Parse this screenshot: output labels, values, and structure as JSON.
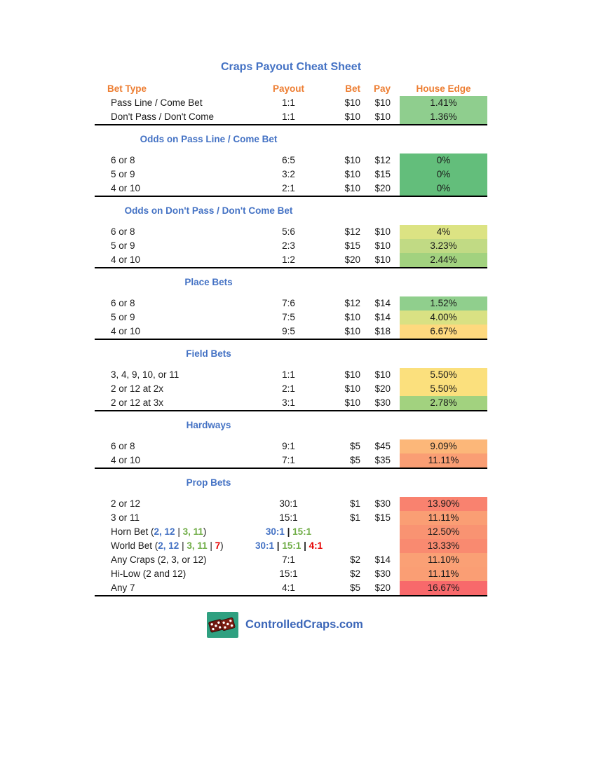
{
  "title": "Craps Payout Cheat Sheet",
  "columns": {
    "bet_type": "Bet Type",
    "payout": "Payout",
    "bet": "Bet",
    "pay": "Pay",
    "house_edge": "House Edge"
  },
  "palette": {
    "title_blue": "#4472C4",
    "header_orange": "#ED7D31",
    "section_blue": "#4472C4",
    "num_blue": "#4472C4",
    "num_green": "#70AD47",
    "num_red": "#E60000",
    "edge_green": "#63BE7B",
    "edge_yellow": "#FBE07D",
    "edge_red": "#F8696B",
    "logo_green": "#2FA080",
    "dice_maroon": "#6E1710",
    "site_blue": "#3B66B8"
  },
  "sections": [
    {
      "title": null,
      "rows": [
        {
          "bet_type": "Pass Line / Come Bet",
          "payout": "1:1",
          "bet": "$10",
          "pay": "$10",
          "edge": "1.41%",
          "edge_color": "#8FCE8E"
        },
        {
          "bet_type": "Don't Pass / Don't Come",
          "payout": "1:1",
          "bet": "$10",
          "pay": "$10",
          "edge": "1.36%",
          "edge_color": "#8FCE8E"
        }
      ]
    },
    {
      "title": "Odds on Pass Line / Come Bet",
      "rows": [
        {
          "bet_type": "6 or 8",
          "payout": "6:5",
          "bet": "$10",
          "pay": "$12",
          "edge": "0%",
          "edge_color": "#63BE7B"
        },
        {
          "bet_type": "5 or 9",
          "payout": "3:2",
          "bet": "$10",
          "pay": "$15",
          "edge": "0%",
          "edge_color": "#63BE7B"
        },
        {
          "bet_type": "4 or 10",
          "payout": "2:1",
          "bet": "$10",
          "pay": "$20",
          "edge": "0%",
          "edge_color": "#63BE7B"
        }
      ]
    },
    {
      "title": "Odds on Don't Pass / Don't Come Bet",
      "rows": [
        {
          "bet_type": "6 or 8",
          "payout": "5:6",
          "bet": "$12",
          "pay": "$10",
          "edge": "4%",
          "edge_color": "#DCE383"
        },
        {
          "bet_type": "5 or 9",
          "payout": "2:3",
          "bet": "$15",
          "pay": "$10",
          "edge": "3.23%",
          "edge_color": "#C1DA84"
        },
        {
          "bet_type": "4 or 10",
          "payout": "1:2",
          "bet": "$20",
          "pay": "$10",
          "edge": "2.44%",
          "edge_color": "#A2D27F"
        }
      ]
    },
    {
      "title": "Place Bets",
      "rows": [
        {
          "bet_type": "6 or 8",
          "payout": "7:6",
          "bet": "$12",
          "pay": "$14",
          "edge": "1.52%",
          "edge_color": "#90CF8D"
        },
        {
          "bet_type": "5 or 9",
          "payout": "7:5",
          "bet": "$10",
          "pay": "$14",
          "edge": "4.00%",
          "edge_color": "#D9E183"
        },
        {
          "bet_type": "4 or 10",
          "payout": "9:5",
          "bet": "$10",
          "pay": "$18",
          "edge": "6.67%",
          "edge_color": "#FED97E"
        }
      ]
    },
    {
      "title": "Field Bets",
      "rows": [
        {
          "bet_type": "3, 4, 9, 10, or 11",
          "payout": "1:1",
          "bet": "$10",
          "pay": "$10",
          "edge": "5.50%",
          "edge_color": "#FBE07D"
        },
        {
          "bet_type": "2 or 12 at 2x",
          "payout": "2:1",
          "bet": "$10",
          "pay": "$20",
          "edge": "5.50%",
          "edge_color": "#FBE07D"
        },
        {
          "bet_type": "2 or 12 at 3x",
          "payout": "3:1",
          "bet": "$10",
          "pay": "$30",
          "edge": "2.78%",
          "edge_color": "#A2D27F"
        }
      ]
    },
    {
      "title": "Hardways",
      "rows": [
        {
          "bet_type": "6 or 8",
          "payout": "9:1",
          "bet": "$5",
          "pay": "$45",
          "edge": "9.09%",
          "edge_color": "#FCB779"
        },
        {
          "bet_type": "4 or 10",
          "payout": "7:1",
          "bet": "$5",
          "pay": "$35",
          "edge": "11.11%",
          "edge_color": "#FA9E74"
        }
      ]
    },
    {
      "title": "Prop Bets",
      "rows": [
        {
          "bet_type": "2 or 12",
          "payout": "30:1",
          "bet": "$1",
          "pay": "$30",
          "edge": "13.90%",
          "edge_color": "#F9826F"
        },
        {
          "bet_type": "3 or 11",
          "payout": "15:1",
          "bet": "$1",
          "pay": "$15",
          "edge": "11.11%",
          "edge_color": "#FA9E74"
        },
        {
          "bet_type_parts": [
            {
              "t": "Horn Bet ("
            },
            {
              "t": "2, 12",
              "c": "#4472C4",
              "b": true
            },
            {
              "t": " | "
            },
            {
              "t": "3, 11",
              "c": "#70AD47",
              "b": true
            },
            {
              "t": ")"
            }
          ],
          "payout_parts": [
            {
              "t": "30:1",
              "c": "#4472C4",
              "b": true
            },
            {
              "t": " | ",
              "b": true
            },
            {
              "t": "15:1",
              "c": "#70AD47",
              "b": true
            }
          ],
          "bet": "",
          "pay": "",
          "edge": "12.50%",
          "edge_color": "#F99372"
        },
        {
          "bet_type_parts": [
            {
              "t": "World Bet ("
            },
            {
              "t": "2, 12",
              "c": "#4472C4",
              "b": true
            },
            {
              "t": " | "
            },
            {
              "t": "3, 11",
              "c": "#70AD47",
              "b": true
            },
            {
              "t": " | "
            },
            {
              "t": "7",
              "c": "#E60000",
              "b": true
            },
            {
              "t": ")"
            }
          ],
          "payout_parts": [
            {
              "t": "30:1",
              "c": "#4472C4",
              "b": true
            },
            {
              "t": " | ",
              "b": true
            },
            {
              "t": "15:1",
              "c": "#70AD47",
              "b": true
            },
            {
              "t": " | ",
              "b": true
            },
            {
              "t": "4:1",
              "c": "#E60000",
              "b": true
            }
          ],
          "bet": "",
          "pay": "",
          "edge": "13.33%",
          "edge_color": "#F98A70"
        },
        {
          "bet_type": "Any Craps (2, 3, or 12)",
          "payout": "7:1",
          "bet": "$2",
          "pay": "$14",
          "edge": "11.10%",
          "edge_color": "#FAA075"
        },
        {
          "bet_type": "Hi-Low (2 and 12)",
          "payout": "15:1",
          "bet": "$2",
          "pay": "$30",
          "edge": "11.11%",
          "edge_color": "#FA9E74"
        },
        {
          "bet_type": "Any 7",
          "payout": "4:1",
          "bet": "$5",
          "pay": "$20",
          "edge": "16.67%",
          "edge_color": "#F8696B"
        }
      ]
    }
  ],
  "footer": {
    "site": "ControlledCraps.com",
    "logo_icon": "dice-logo"
  }
}
